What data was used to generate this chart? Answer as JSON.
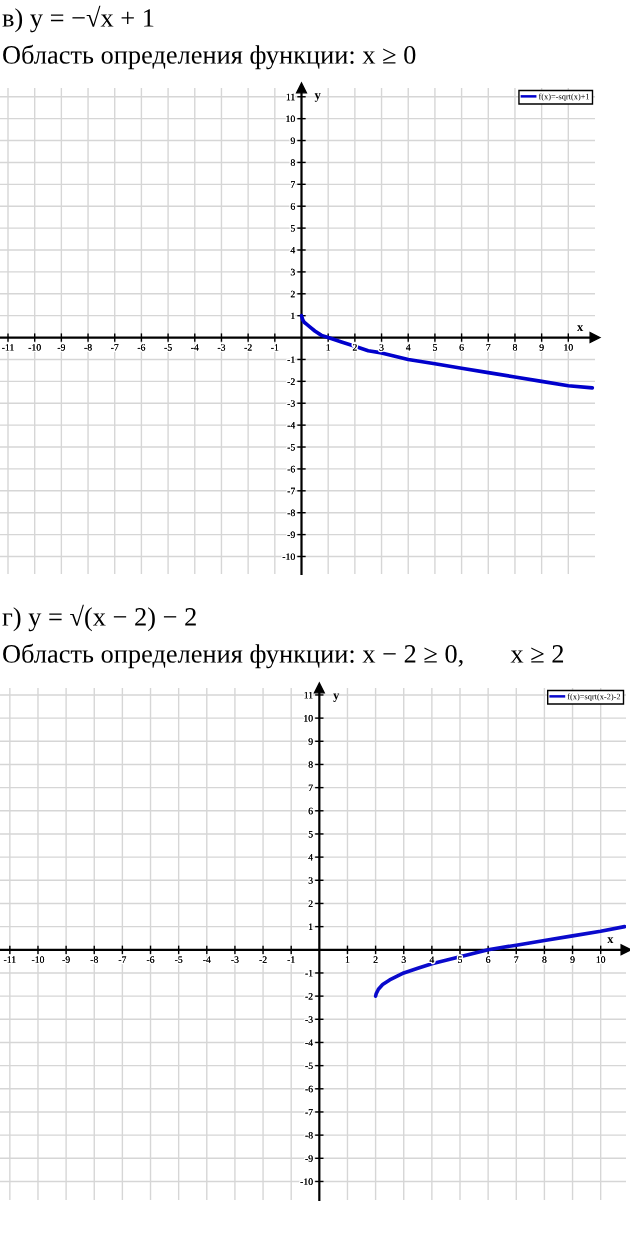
{
  "chart_data": [
    {
      "type": "line",
      "title": "в) y = −√x + 1",
      "subtitle": "Область определения функции: x ≥ 0",
      "xlabel": "x",
      "ylabel": "y",
      "series": [
        {
          "name": "f(x)=-sqrt(x)+1",
          "color": "#0000cc",
          "x": [
            0,
            0.05,
            0.1,
            0.2,
            0.3,
            0.5,
            0.75,
            1,
            1.5,
            2,
            2.5,
            3,
            4,
            5,
            6,
            7,
            8,
            9,
            10,
            10.9
          ],
          "values": [
            1,
            0.8,
            0.7,
            0.6,
            0.5,
            0.3,
            0.1,
            0,
            -0.2,
            -0.4,
            -0.6,
            -0.7,
            -1,
            -1.2,
            -1.4,
            -1.6,
            -1.8,
            -2,
            -2.2,
            -2.3
          ]
        }
      ],
      "xlim": [
        -11.3,
        11
      ],
      "ylim": [
        -10.8,
        11.4
      ],
      "xticks": [
        -11,
        -10,
        -9,
        -8,
        -7,
        -6,
        -5,
        -4,
        -3,
        -2,
        -1,
        1,
        2,
        3,
        4,
        5,
        6,
        7,
        8,
        9,
        10
      ],
      "yticks": [
        -10,
        -9,
        -8,
        -7,
        -6,
        -5,
        -4,
        -3,
        -2,
        -1,
        1,
        2,
        3,
        4,
        5,
        6,
        7,
        8,
        9,
        10,
        11
      ],
      "grid": true,
      "legend": "top right"
    },
    {
      "type": "line",
      "title": "г) y = √(x − 2) − 2",
      "subtitle": "Область определения функции: x − 2 ≥ 0,       x ≥ 2",
      "xlabel": "x",
      "ylabel": "y",
      "series": [
        {
          "name": "f(x)=sqrt(x-2)-2",
          "color": "#0a0acc",
          "x": [
            2,
            2.02,
            2.1,
            2.25,
            2.5,
            3,
            3.5,
            4,
            5,
            6,
            7,
            8,
            9,
            10,
            10.85
          ],
          "values": [
            -2,
            -1.9,
            -1.7,
            -1.5,
            -1.3,
            -1,
            -0.8,
            -0.6,
            -0.3,
            0,
            0.2,
            0.4,
            0.6,
            0.8,
            1
          ]
        }
      ],
      "xlim": [
        -11.35,
        10.9
      ],
      "ylim": [
        -10.8,
        11.3
      ],
      "xticks": [
        -11,
        -10,
        -9,
        -8,
        -7,
        -6,
        -5,
        -4,
        -3,
        -2,
        -1,
        1,
        2,
        3,
        4,
        5,
        6,
        7,
        8,
        9,
        10
      ],
      "yticks": [
        -10,
        -9,
        -8,
        -7,
        -6,
        -5,
        -4,
        -3,
        -2,
        -1,
        1,
        2,
        3,
        4,
        5,
        6,
        7,
        8,
        9,
        10,
        11
      ],
      "grid": true,
      "legend": "top right"
    }
  ]
}
